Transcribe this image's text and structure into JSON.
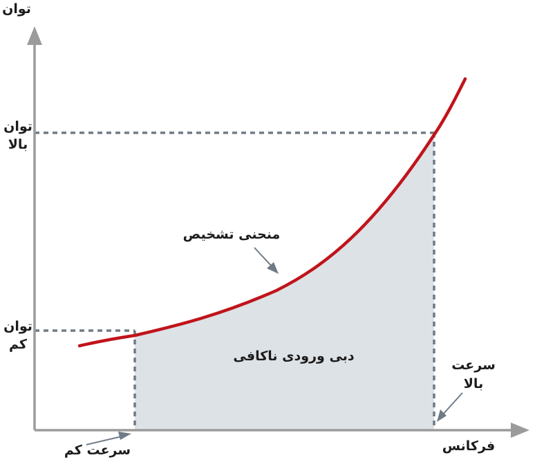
{
  "diagram": {
    "axis_y_label": "توان",
    "axis_x_label": "فرکانس",
    "high_power_label": "توان بالا",
    "low_power_label": "توان کم",
    "high_speed_label": "سرعت بالا",
    "low_speed_label": "سرعت کم",
    "curve_label": "منحنی تشخیص",
    "area_label": "دبی ورودی ناکافی",
    "colors": {
      "axis": "#9b9b9b",
      "curve": "#c0141b",
      "dashed": "#6f7b86",
      "area": "#dde2e6",
      "text": "#1c1c1c"
    }
  }
}
